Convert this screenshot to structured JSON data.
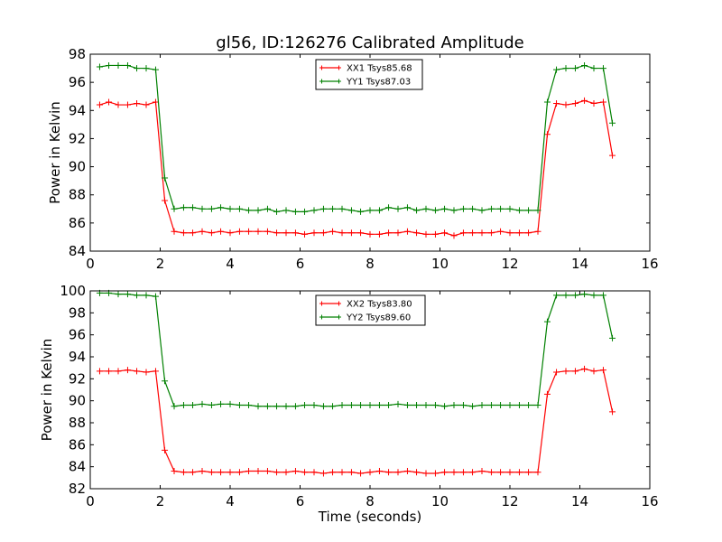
{
  "title": "gl56, ID:126276 Calibrated Amplitude",
  "colors": {
    "red": "#ff0000",
    "green": "#008000"
  },
  "chart_data": [
    {
      "type": "line",
      "title": "gl56, ID:126276 Calibrated Amplitude",
      "xlabel": "",
      "ylabel": "Power in Kelvin",
      "xlim": [
        0,
        16
      ],
      "ylim": [
        84,
        98
      ],
      "xticks": [
        0,
        2,
        4,
        6,
        8,
        10,
        12,
        14,
        16
      ],
      "yticks": [
        84,
        86,
        88,
        90,
        92,
        94,
        96,
        98
      ],
      "grid": false,
      "legend_position": "top-center",
      "x": [
        0.27,
        0.53,
        0.8,
        1.07,
        1.33,
        1.6,
        1.87,
        2.13,
        2.4,
        2.67,
        2.93,
        3.2,
        3.47,
        3.73,
        4.0,
        4.27,
        4.53,
        4.8,
        5.07,
        5.33,
        5.6,
        5.87,
        6.13,
        6.4,
        6.67,
        6.93,
        7.2,
        7.47,
        7.73,
        8.0,
        8.27,
        8.53,
        8.8,
        9.07,
        9.33,
        9.6,
        9.87,
        10.13,
        10.4,
        10.67,
        10.93,
        11.2,
        11.47,
        11.73,
        12.0,
        12.27,
        12.53,
        12.8,
        13.07,
        13.33,
        13.6,
        13.87,
        14.13,
        14.4,
        14.67,
        14.93
      ],
      "series": [
        {
          "name": "XX1 Tsys85.68",
          "color": "#ff0000",
          "values": [
            94.4,
            94.6,
            94.4,
            94.4,
            94.5,
            94.4,
            94.6,
            87.6,
            85.4,
            85.3,
            85.3,
            85.4,
            85.3,
            85.4,
            85.3,
            85.4,
            85.4,
            85.4,
            85.4,
            85.3,
            85.3,
            85.3,
            85.2,
            85.3,
            85.3,
            85.4,
            85.3,
            85.3,
            85.3,
            85.2,
            85.2,
            85.3,
            85.3,
            85.4,
            85.3,
            85.2,
            85.2,
            85.3,
            85.1,
            85.3,
            85.3,
            85.3,
            85.3,
            85.4,
            85.3,
            85.3,
            85.3,
            85.4,
            92.3,
            94.5,
            94.4,
            94.5,
            94.7,
            94.5,
            94.6,
            90.8
          ]
        },
        {
          "name": "YY1 Tsys87.03",
          "color": "#008000",
          "values": [
            97.1,
            97.2,
            97.2,
            97.2,
            97.0,
            97.0,
            96.9,
            89.2,
            87.0,
            87.1,
            87.1,
            87.0,
            87.0,
            87.1,
            87.0,
            87.0,
            86.9,
            86.9,
            87.0,
            86.8,
            86.9,
            86.8,
            86.8,
            86.9,
            87.0,
            87.0,
            87.0,
            86.9,
            86.8,
            86.9,
            86.9,
            87.1,
            87.0,
            87.1,
            86.9,
            87.0,
            86.9,
            87.0,
            86.9,
            87.0,
            87.0,
            86.9,
            87.0,
            87.0,
            87.0,
            86.9,
            86.9,
            86.9,
            94.6,
            96.9,
            97.0,
            97.0,
            97.2,
            97.0,
            97.0,
            93.1
          ]
        }
      ]
    },
    {
      "type": "line",
      "title": "",
      "xlabel": "Time (seconds)",
      "ylabel": "Power in Kelvin",
      "xlim": [
        0,
        16
      ],
      "ylim": [
        82,
        100
      ],
      "xticks": [
        0,
        2,
        4,
        6,
        8,
        10,
        12,
        14,
        16
      ],
      "yticks": [
        82,
        84,
        86,
        88,
        90,
        92,
        94,
        96,
        98,
        100
      ],
      "grid": false,
      "legend_position": "top-center",
      "x": [
        0.27,
        0.53,
        0.8,
        1.07,
        1.33,
        1.6,
        1.87,
        2.13,
        2.4,
        2.67,
        2.93,
        3.2,
        3.47,
        3.73,
        4.0,
        4.27,
        4.53,
        4.8,
        5.07,
        5.33,
        5.6,
        5.87,
        6.13,
        6.4,
        6.67,
        6.93,
        7.2,
        7.47,
        7.73,
        8.0,
        8.27,
        8.53,
        8.8,
        9.07,
        9.33,
        9.6,
        9.87,
        10.13,
        10.4,
        10.67,
        10.93,
        11.2,
        11.47,
        11.73,
        12.0,
        12.27,
        12.53,
        12.8,
        13.07,
        13.33,
        13.6,
        13.87,
        14.13,
        14.4,
        14.67,
        14.93
      ],
      "series": [
        {
          "name": "XX2 Tsys83.80",
          "color": "#ff0000",
          "values": [
            92.7,
            92.7,
            92.7,
            92.8,
            92.7,
            92.6,
            92.7,
            85.5,
            83.6,
            83.5,
            83.5,
            83.6,
            83.5,
            83.5,
            83.5,
            83.5,
            83.6,
            83.6,
            83.6,
            83.5,
            83.5,
            83.6,
            83.5,
            83.5,
            83.4,
            83.5,
            83.5,
            83.5,
            83.4,
            83.5,
            83.6,
            83.5,
            83.5,
            83.6,
            83.5,
            83.4,
            83.4,
            83.5,
            83.5,
            83.5,
            83.5,
            83.6,
            83.5,
            83.5,
            83.5,
            83.5,
            83.5,
            83.5,
            90.6,
            92.6,
            92.7,
            92.7,
            92.9,
            92.7,
            92.8,
            89.0
          ]
        },
        {
          "name": "YY2 Tsys89.60",
          "color": "#008000",
          "values": [
            99.8,
            99.8,
            99.7,
            99.7,
            99.6,
            99.6,
            99.5,
            91.8,
            89.5,
            89.6,
            89.6,
            89.7,
            89.6,
            89.7,
            89.7,
            89.6,
            89.6,
            89.5,
            89.5,
            89.5,
            89.5,
            89.5,
            89.6,
            89.6,
            89.5,
            89.5,
            89.6,
            89.6,
            89.6,
            89.6,
            89.6,
            89.6,
            89.7,
            89.6,
            89.6,
            89.6,
            89.6,
            89.5,
            89.6,
            89.6,
            89.5,
            89.6,
            89.6,
            89.6,
            89.6,
            89.6,
            89.6,
            89.6,
            97.2,
            99.6,
            99.6,
            99.6,
            99.7,
            99.6,
            99.6,
            95.7
          ]
        }
      ]
    }
  ]
}
